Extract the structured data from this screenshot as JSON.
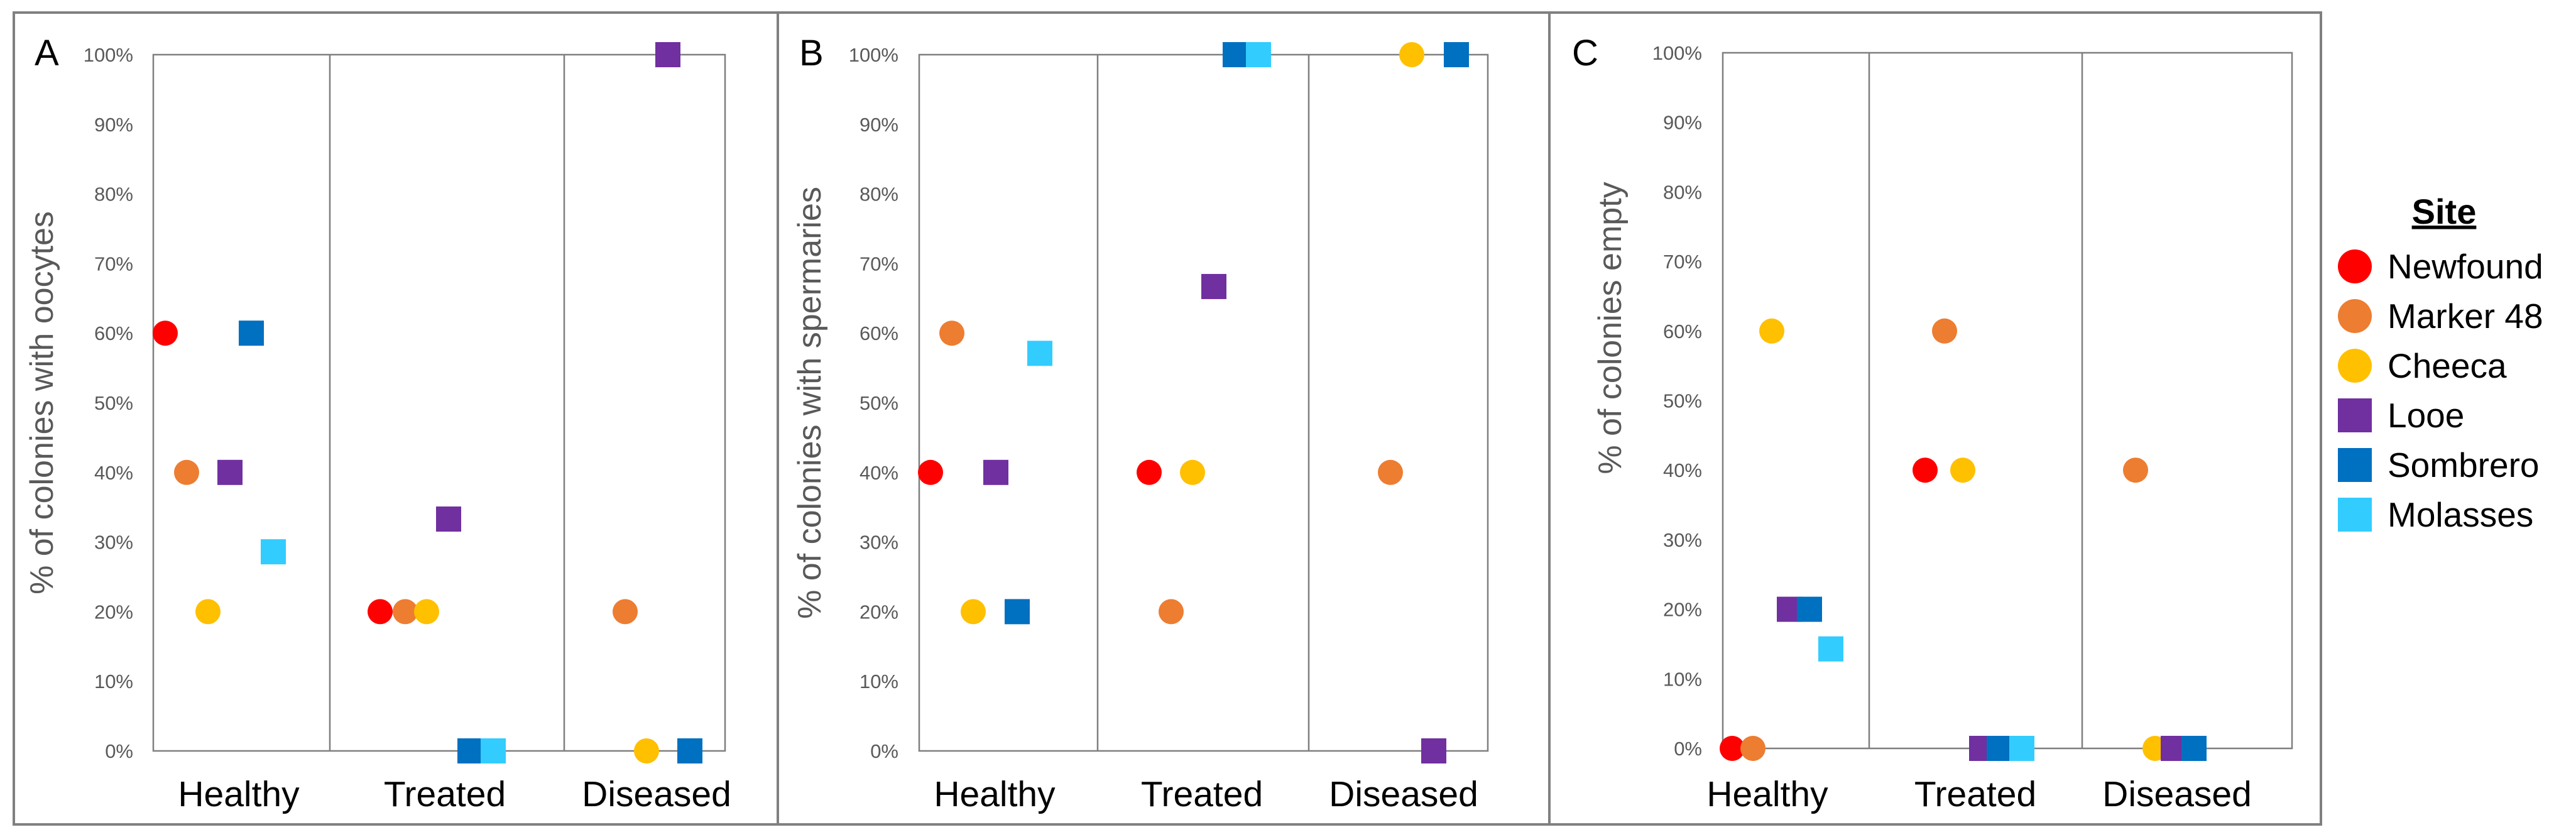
{
  "legend": {
    "title": "Site",
    "sites": [
      {
        "name": "Newfound",
        "color": "#ff0000",
        "shape": "circle"
      },
      {
        "name": "Marker 48",
        "color": "#ed7d31",
        "shape": "circle"
      },
      {
        "name": "Cheeca",
        "color": "#ffc000",
        "shape": "circle"
      },
      {
        "name": "Looe",
        "color": "#7030a0",
        "shape": "square"
      },
      {
        "name": "Sombrero",
        "color": "#0070c0",
        "shape": "square"
      },
      {
        "name": "Molasses",
        "color": "#33ccff",
        "shape": "square"
      }
    ]
  },
  "chart_data": [
    {
      "panel": "A",
      "type": "scatter",
      "ylabel": "% of colonies with oocytes",
      "xlabel": "",
      "categories": [
        "Healthy",
        "Treated",
        "Diseased"
      ],
      "yticks": [
        "0%",
        "10%",
        "20%",
        "30%",
        "40%",
        "50%",
        "60%",
        "70%",
        "80%",
        "90%",
        "100%"
      ],
      "ylim": [
        0,
        100
      ],
      "series": [
        {
          "name": "Newfound",
          "values": [
            60,
            20,
            null
          ]
        },
        {
          "name": "Marker 48",
          "values": [
            40,
            20,
            20
          ]
        },
        {
          "name": "Cheeca",
          "values": [
            20,
            20,
            0
          ]
        },
        {
          "name": "Looe",
          "values": [
            40,
            33.3,
            100
          ]
        },
        {
          "name": "Sombrero",
          "values": [
            60,
            0,
            0
          ]
        },
        {
          "name": "Molasses",
          "values": [
            28.6,
            0,
            null
          ]
        }
      ]
    },
    {
      "panel": "B",
      "type": "scatter",
      "ylabel": "% of colonies with spermaries",
      "xlabel": "",
      "categories": [
        "Healthy",
        "Treated",
        "Diseased"
      ],
      "yticks": [
        "0%",
        "10%",
        "20%",
        "30%",
        "40%",
        "50%",
        "60%",
        "70%",
        "80%",
        "90%",
        "100%"
      ],
      "ylim": [
        0,
        100
      ],
      "series": [
        {
          "name": "Newfound",
          "values": [
            40,
            40,
            null
          ]
        },
        {
          "name": "Marker 48",
          "values": [
            60,
            20,
            40
          ]
        },
        {
          "name": "Cheeca",
          "values": [
            20,
            40,
            100
          ]
        },
        {
          "name": "Looe",
          "values": [
            40,
            66.7,
            0
          ]
        },
        {
          "name": "Sombrero",
          "values": [
            20,
            100,
            100
          ]
        },
        {
          "name": "Molasses",
          "values": [
            57.1,
            100,
            null
          ]
        }
      ]
    },
    {
      "panel": "C",
      "type": "scatter",
      "ylabel": "% of colonies empty",
      "xlabel": "",
      "categories": [
        "Healthy",
        "Treated",
        "Diseased"
      ],
      "yticks": [
        "0%",
        "10%",
        "20%",
        "30%",
        "40%",
        "50%",
        "60%",
        "70%",
        "80%",
        "90%",
        "100%"
      ],
      "ylim": [
        0,
        100
      ],
      "series": [
        {
          "name": "Newfound",
          "values": [
            0,
            40,
            null
          ]
        },
        {
          "name": "Marker 48",
          "values": [
            0,
            60,
            40
          ]
        },
        {
          "name": "Cheeca",
          "values": [
            60,
            40,
            0
          ]
        },
        {
          "name": "Looe",
          "values": [
            20,
            0,
            0
          ]
        },
        {
          "name": "Sombrero",
          "values": [
            20,
            0,
            0
          ]
        },
        {
          "name": "Molasses",
          "values": [
            14.3,
            0,
            null
          ]
        }
      ]
    }
  ]
}
